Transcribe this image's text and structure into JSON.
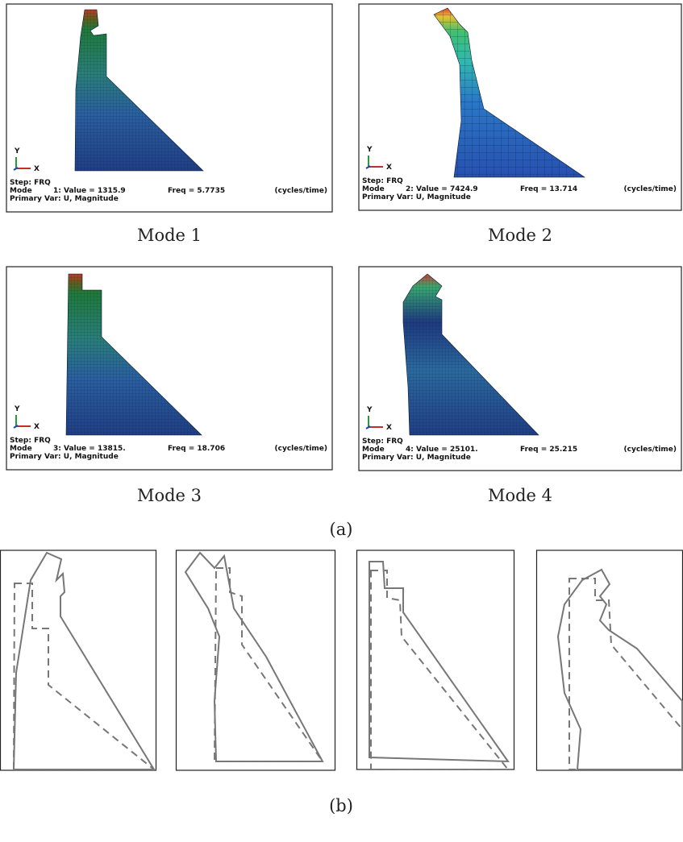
{
  "figure_a": {
    "label": "(a)",
    "panels": [
      {
        "caption": "Mode 1",
        "step": "Step: FRQ",
        "mode": "Mode",
        "value": "1: Value =  1315.9",
        "freq": "Freq =  5.7735",
        "unit": "(cycles/time)",
        "primary_var": "Primary Var: U, Magnitude",
        "axis_y": "Y",
        "axis_x": "X"
      },
      {
        "caption": "Mode 2",
        "step": "Step: FRQ",
        "mode": "Mode",
        "value": "2: Value =  7424.9",
        "freq": "Freq =  13.714",
        "unit": "(cycles/time)",
        "primary_var": "Primary Var: U, Magnitude",
        "axis_y": "Y",
        "axis_x": "X"
      },
      {
        "caption": "Mode 3",
        "step": "Step: FRQ",
        "mode": "Mode",
        "value": "3: Value =  13815.",
        "freq": "Freq =  18.706",
        "unit": "(cycles/time)",
        "primary_var": "Primary Var: U, Magnitude",
        "axis_y": "Y",
        "axis_x": "X"
      },
      {
        "caption": "Mode 4",
        "step": "Step: FRQ",
        "mode": "Mode",
        "value": "4: Value =  25101.",
        "freq": "Freq =  25.215",
        "unit": "(cycles/time)",
        "primary_var": "Primary Var: U, Magnitude",
        "axis_y": "Y",
        "axis_x": "X"
      }
    ]
  },
  "figure_b": {
    "label": "(b)"
  }
}
